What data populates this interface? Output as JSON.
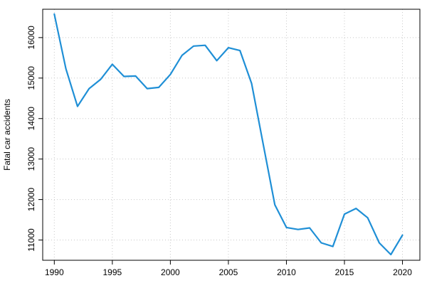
{
  "chart_data": {
    "type": "line",
    "title": "",
    "xlabel": "",
    "ylabel": "Fatal car accidents",
    "xlim": [
      1989,
      2021.5
    ],
    "ylim": [
      10500,
      16700
    ],
    "x_ticks": [
      1990,
      1995,
      2000,
      2005,
      2010,
      2015,
      2020
    ],
    "y_ticks": [
      11000,
      12000,
      13000,
      14000,
      15000,
      16000
    ],
    "grid": true,
    "line_color": "#1f8fd6",
    "series": [
      {
        "x": [
          1990,
          1991,
          1992,
          1993,
          1994,
          1995,
          1996,
          1997,
          1998,
          1999,
          2000,
          2001,
          2002,
          2003,
          2004,
          2005,
          2006,
          2007,
          2008,
          2009,
          2010,
          2011,
          2012,
          2013,
          2014,
          2015,
          2016,
          2017,
          2018,
          2019,
          2020
        ],
        "values": [
          16580,
          15230,
          14300,
          14740,
          14970,
          15340,
          15040,
          15050,
          14740,
          14770,
          15090,
          15560,
          15790,
          15810,
          15430,
          15750,
          15680,
          14870,
          13370,
          11870,
          11310,
          11260,
          11300,
          10930,
          10840,
          11640,
          11780,
          11550,
          10930,
          10640,
          11120
        ]
      }
    ]
  }
}
